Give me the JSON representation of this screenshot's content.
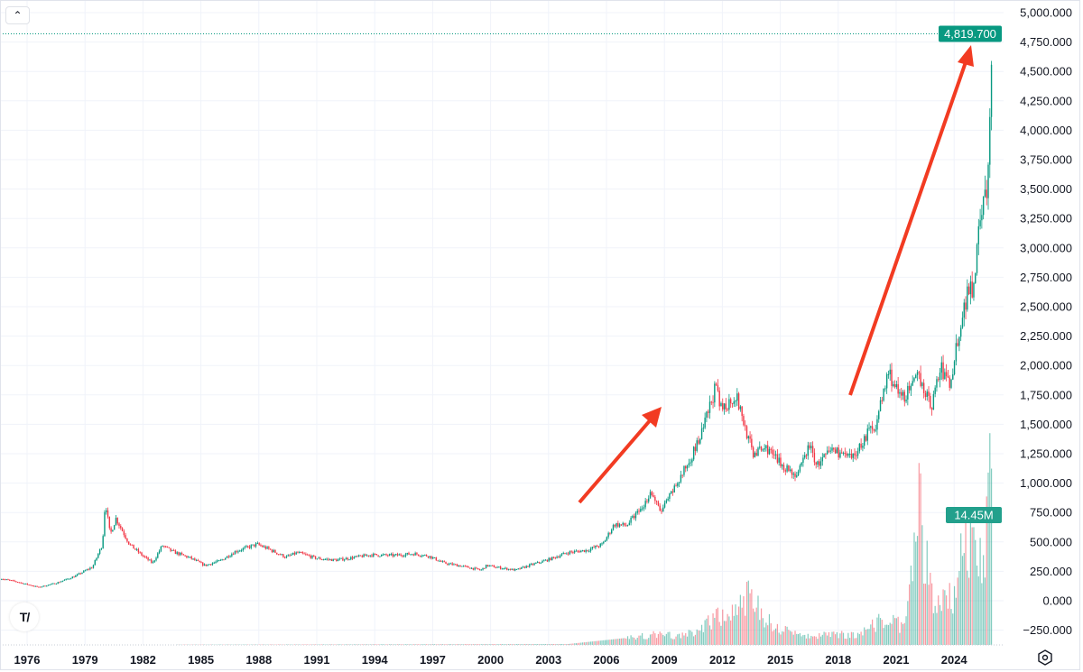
{
  "chart_data": {
    "type": "candlestick",
    "title": "",
    "y_axis": {
      "range": [
        -350,
        5050
      ],
      "tick_labels": [
        "5,000.000",
        "4,750.000",
        "4,500.000",
        "4,250.000",
        "4,000.000",
        "3,750.000",
        "3,500.000",
        "3,250.000",
        "3,000.000",
        "2,750.000",
        "2,500.000",
        "2,250.000",
        "2,000.000",
        "1,750.000",
        "1,500.000",
        "1,250.000",
        "1,000.000",
        "750.000",
        "500.000",
        "250.000",
        "0.000",
        "−250.000"
      ],
      "tick_values": [
        5000,
        4750,
        4500,
        4250,
        4000,
        3750,
        3500,
        3250,
        3000,
        2750,
        2500,
        2250,
        2000,
        1750,
        1500,
        1250,
        1000,
        750,
        500,
        250,
        0,
        -250
      ]
    },
    "x_axis": {
      "tick_labels": [
        "1976",
        "1979",
        "1982",
        "1985",
        "1988",
        "1991",
        "1994",
        "1997",
        "2000",
        "2003",
        "2006",
        "2009",
        "2012",
        "2015",
        "2018",
        "2021",
        "2024"
      ],
      "range_years": [
        1974.6,
        2026.6
      ]
    },
    "grid": true,
    "price_series_approx": [
      [
        1974.6,
        190
      ],
      [
        1975.5,
        160
      ],
      [
        1976.6,
        115
      ],
      [
        1977.5,
        150
      ],
      [
        1978.5,
        210
      ],
      [
        1979.4,
        290
      ],
      [
        1979.9,
        480
      ],
      [
        1980.05,
        850
      ],
      [
        1980.3,
        560
      ],
      [
        1980.6,
        700
      ],
      [
        1981.3,
        480
      ],
      [
        1982.0,
        380
      ],
      [
        1982.5,
        320
      ],
      [
        1983.0,
        470
      ],
      [
        1983.5,
        420
      ],
      [
        1984.5,
        360
      ],
      [
        1985.2,
        300
      ],
      [
        1986.0,
        340
      ],
      [
        1986.8,
        420
      ],
      [
        1987.9,
        480
      ],
      [
        1988.5,
        440
      ],
      [
        1989.4,
        370
      ],
      [
        1990.0,
        410
      ],
      [
        1991.0,
        360
      ],
      [
        1992.0,
        345
      ],
      [
        1993.0,
        370
      ],
      [
        1993.8,
        390
      ],
      [
        1995.0,
        385
      ],
      [
        1996.0,
        400
      ],
      [
        1996.8,
        380
      ],
      [
        1997.6,
        320
      ],
      [
        1998.5,
        295
      ],
      [
        1999.5,
        260
      ],
      [
        1999.8,
        300
      ],
      [
        2000.5,
        280
      ],
      [
        2001.3,
        260
      ],
      [
        2002.0,
        300
      ],
      [
        2003.0,
        350
      ],
      [
        2004.0,
        410
      ],
      [
        2005.0,
        430
      ],
      [
        2005.8,
        480
      ],
      [
        2006.4,
        650
      ],
      [
        2007.0,
        640
      ],
      [
        2007.9,
        800
      ],
      [
        2008.3,
        930
      ],
      [
        2008.8,
        750
      ],
      [
        2009.5,
        950
      ],
      [
        2010.0,
        1100
      ],
      [
        2010.9,
        1400
      ],
      [
        2011.65,
        1820
      ],
      [
        2011.9,
        1620
      ],
      [
        2012.7,
        1750
      ],
      [
        2013.3,
        1400
      ],
      [
        2013.6,
        1250
      ],
      [
        2014.3,
        1300
      ],
      [
        2014.9,
        1180
      ],
      [
        2015.9,
        1060
      ],
      [
        2016.5,
        1330
      ],
      [
        2016.9,
        1150
      ],
      [
        2017.7,
        1290
      ],
      [
        2018.7,
        1200
      ],
      [
        2019.5,
        1420
      ],
      [
        2020.0,
        1520
      ],
      [
        2020.6,
        1950
      ],
      [
        2021.2,
        1720
      ],
      [
        2021.8,
        1800
      ],
      [
        2022.2,
        1920
      ],
      [
        2022.8,
        1640
      ],
      [
        2023.3,
        1980
      ],
      [
        2023.8,
        1830
      ],
      [
        2024.2,
        2250
      ],
      [
        2024.8,
        2700
      ],
      [
        2025.0,
        2650
      ],
      [
        2025.3,
        3300
      ],
      [
        2025.7,
        3450
      ],
      [
        2025.8,
        3850
      ],
      [
        2026.0,
        4819.7
      ]
    ],
    "volume_series_approx_millions": [
      [
        1974.6,
        0
      ],
      [
        2004.0,
        0.1
      ],
      [
        2007.0,
        0.8
      ],
      [
        2008.5,
        1.2
      ],
      [
        2010.0,
        1.0
      ],
      [
        2011.7,
        3.0
      ],
      [
        2013.3,
        5.5
      ],
      [
        2014.5,
        2.5
      ],
      [
        2016.0,
        1.0
      ],
      [
        2019.0,
        1.2
      ],
      [
        2020.3,
        3.0
      ],
      [
        2021.5,
        2.0
      ],
      [
        2022.2,
        17.0
      ],
      [
        2022.5,
        10.0
      ],
      [
        2023.0,
        4.0
      ],
      [
        2024.0,
        6.0
      ],
      [
        2024.6,
        12.0
      ],
      [
        2025.1,
        10.5
      ],
      [
        2025.5,
        9.0
      ],
      [
        2025.8,
        19.5
      ],
      [
        2026.0,
        14.45
      ]
    ]
  },
  "last_price_label": "4,819.700",
  "volume_label": "14.45M",
  "colors": {
    "up": "#089981",
    "down": "#f23645",
    "annotation_arrow": "#f23b22",
    "grid": "#f0f3fa",
    "label_bg": "#089981"
  },
  "controls": {
    "collapse_icon": "chevron-up-icon",
    "logo": "tradingview-logo",
    "settings_icon": "settings-icon"
  },
  "logo_text": "TV"
}
